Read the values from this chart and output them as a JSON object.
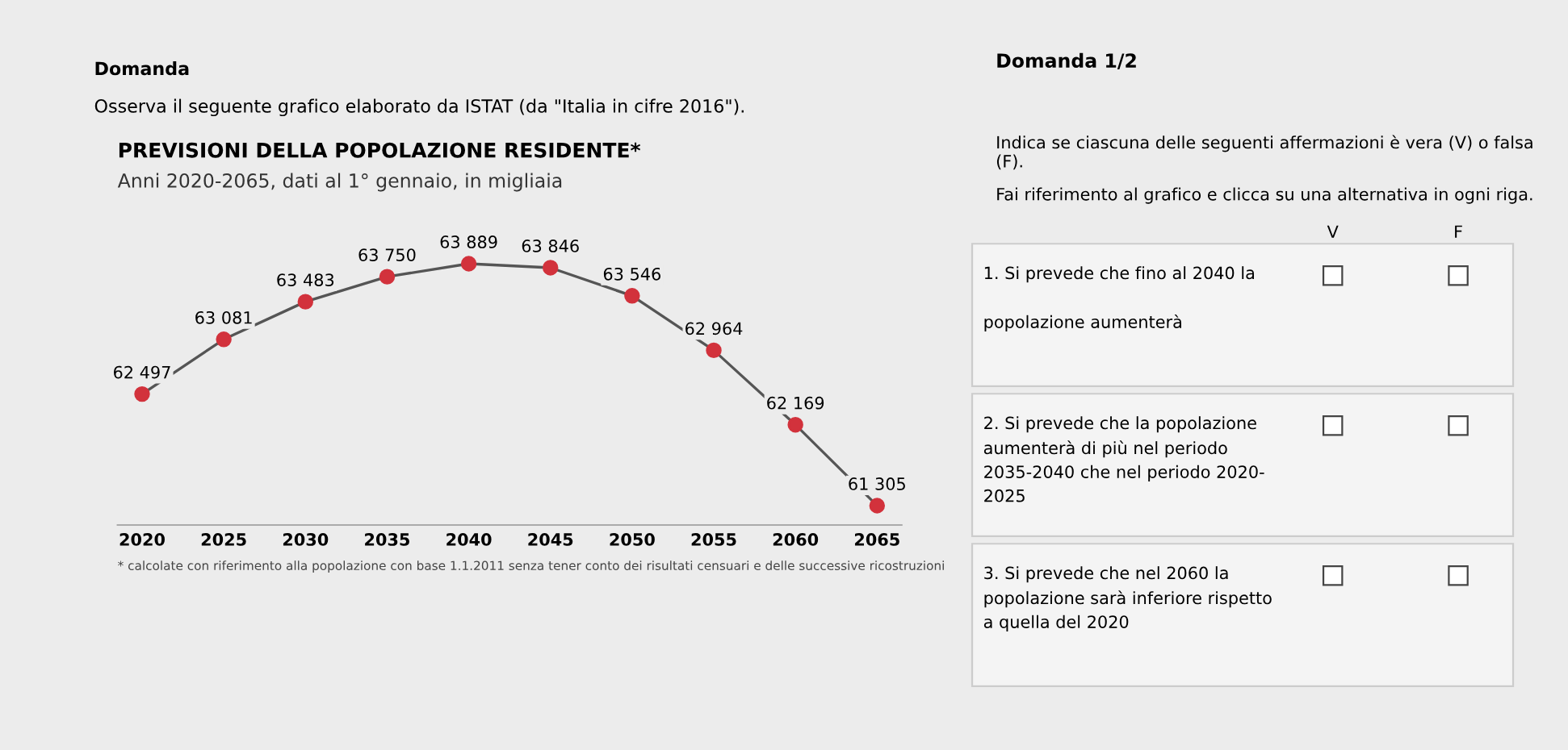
{
  "chart_data": [
    {
      "type": "line",
      "title": "PREVISIONI DELLA POPOLAZIONE RESIDENTE*",
      "subtitle": "Anni 2020-2065, dati al 1° gennaio, in migliaia",
      "categories": [
        "2020",
        "2025",
        "2030",
        "2035",
        "2040",
        "2045",
        "2050",
        "2055",
        "2060",
        "2065"
      ],
      "series": [
        {
          "color": "#d2323c",
          "values": [
            62497,
            63081,
            63483,
            63750,
            63889,
            63846,
            63546,
            62964,
            62169,
            61305
          ],
          "value_labels": [
            "62 497",
            "63 081",
            "63 483",
            "63 750",
            "63 889",
            "63 846",
            "63 546",
            "62 964",
            "62 169",
            "61 305"
          ]
        }
      ],
      "marker": "circle",
      "grid": false,
      "tick_labels": "x",
      "annotations": [
        "Domanda",
        "Osserva il seguente grafico elaborato da ISTAT (da \"Italia in cifre 2016\").",
        "* calcolate con riferimento alla popolazione con base 1.1.2011 senza tener conto dei risultati censuari e delle successive ricostruzioni"
      ]
    },
    {
      "type": "other",
      "title": "Domanda 1/2",
      "annotations": [
        "Indica se ciascuna delle seguenti affermazioni è vera (V) o falsa\n(F).",
        "Fai riferimento al grafico e clicca su una alternativa in ogni riga.",
        "V",
        "F"
      ],
      "categories": [
        "1. Si prevede che fino al 2040 la\n\npopolazione aumenterà",
        "2. Si prevede che la popolazione\naumenterà di più nel periodo\n2035-2040 che nel periodo 2020-\n2025",
        "3. Si prevede che nel 2060 la\npopolazione sarà inferiore rispetto\na quella del 2020"
      ]
    }
  ]
}
